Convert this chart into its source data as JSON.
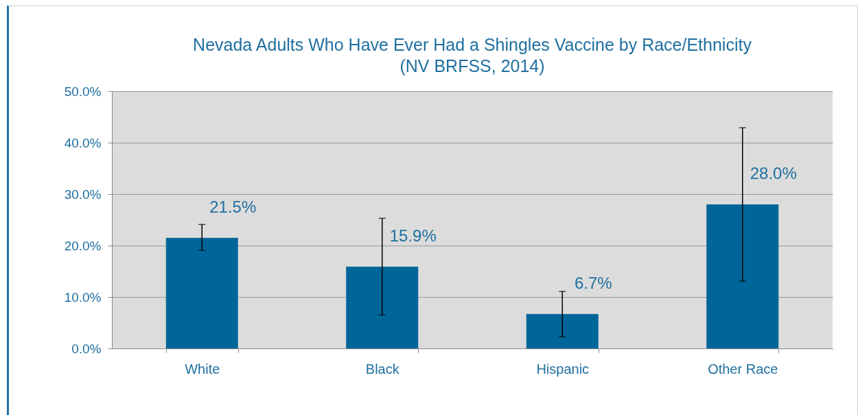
{
  "chart_data": {
    "type": "bar",
    "title": "Nevada Adults Who Have Ever Had a Shingles Vaccine by Race/Ethnicity",
    "subtitle": "(NV BRFSS, 2014)",
    "categories": [
      "White",
      "Black",
      "Hispanic",
      "Other Race"
    ],
    "values": [
      21.5,
      15.9,
      6.7,
      28.0
    ],
    "color": "#006699",
    "errors": [
      [
        19.1,
        24.1
      ],
      [
        6.5,
        25.3
      ],
      [
        2.3,
        11.1
      ],
      [
        13.1,
        42.9
      ]
    ],
    "value_labels": [
      "21.5%",
      "15.9%",
      "6.7%",
      "28.0%"
    ],
    "ylim": [
      0,
      50
    ],
    "yticks": [
      {
        "value": 0,
        "label": "0.0%"
      },
      {
        "value": 10,
        "label": "10.0%"
      },
      {
        "value": 20,
        "label": "20.0%"
      },
      {
        "value": 30,
        "label": "30.0%"
      },
      {
        "value": 40,
        "label": "40.0%"
      },
      {
        "value": 50,
        "label": "50.0%"
      }
    ],
    "grid": "y"
  }
}
